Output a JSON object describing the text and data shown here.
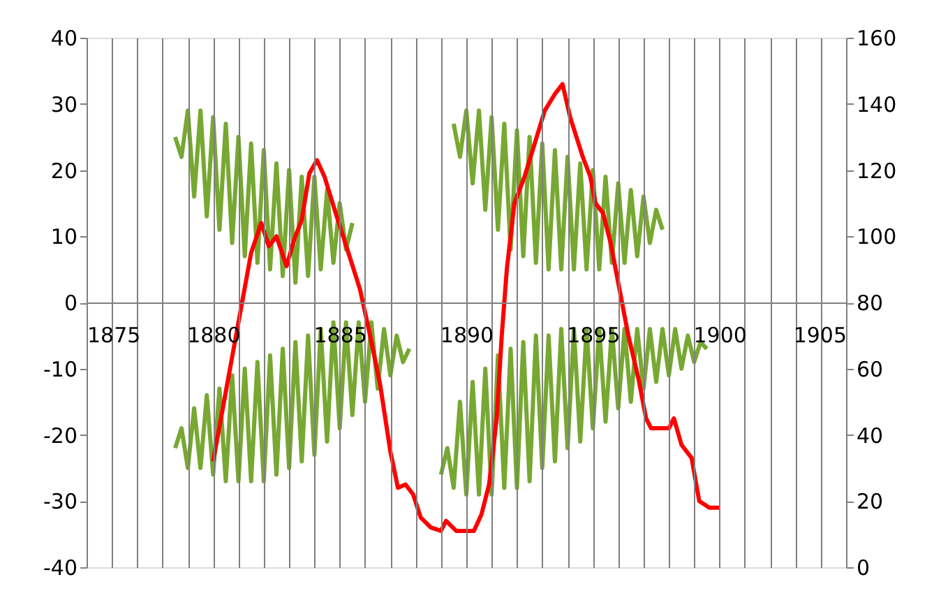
{
  "chart_data": {
    "type": "line",
    "xlim": [
      1875,
      1905
    ],
    "xticks": [
      1875,
      {
        "value": 1876,
        "label": null
      },
      {
        "value": 1877,
        "label": null
      },
      {
        "value": 1878,
        "label": null
      },
      {
        "value": 1879,
        "label": null
      },
      1880,
      {
        "value": 1881,
        "label": null
      },
      {
        "value": 1882,
        "label": null
      },
      {
        "value": 1883,
        "label": null
      },
      {
        "value": 1884,
        "label": null
      },
      1885,
      {
        "value": 1886,
        "label": null
      },
      {
        "value": 1887,
        "label": null
      },
      {
        "value": 1888,
        "label": null
      },
      {
        "value": 1889,
        "label": null
      },
      1890,
      {
        "value": 1891,
        "label": null
      },
      {
        "value": 1892,
        "label": null
      },
      {
        "value": 1893,
        "label": null
      },
      {
        "value": 1894,
        "label": null
      },
      1895,
      {
        "value": 1896,
        "label": null
      },
      {
        "value": 1897,
        "label": null
      },
      {
        "value": 1898,
        "label": null
      },
      {
        "value": 1899,
        "label": null
      },
      1900,
      {
        "value": 1901,
        "label": null
      },
      {
        "value": 1902,
        "label": null
      },
      {
        "value": 1903,
        "label": null
      },
      {
        "value": 1904,
        "label": null
      },
      1905
    ],
    "ylim": [
      -40,
      40
    ],
    "yticks": [
      -40,
      -30,
      -20,
      -10,
      0,
      10,
      20,
      30,
      40
    ],
    "y2lim": [
      0,
      160
    ],
    "y2ticks": [
      0,
      20,
      40,
      60,
      80,
      100,
      120,
      140,
      160
    ],
    "grid": "x",
    "marker": "none",
    "line_style": "solid",
    "series": [
      {
        "color": "#77a832",
        "x": [
          1878.5,
          1878.75,
          1879,
          1879.25,
          1879.5,
          1879.75,
          1880,
          1880.25,
          1880.5,
          1880.75,
          1881,
          1881.25,
          1881.5,
          1881.75,
          1882,
          1882.25,
          1882.5,
          1882.75,
          1883,
          1883.25,
          1883.5,
          1883.75,
          1884,
          1884.25,
          1884.5,
          1884.75,
          1885,
          1885.25,
          1885.5
        ],
        "values": [
          25,
          22,
          29,
          16,
          29,
          13,
          28,
          11,
          27,
          9,
          25,
          7,
          24,
          6,
          23,
          5,
          21,
          4,
          20,
          3,
          19,
          4,
          19,
          5,
          17,
          6,
          15,
          8,
          12
        ]
      },
      {
        "color": "#77a832",
        "x": [
          1878.5,
          1878.75,
          1879,
          1879.25,
          1879.5,
          1879.75,
          1880,
          1880.25,
          1880.5,
          1880.75,
          1881,
          1881.25,
          1881.5,
          1881.75,
          1882,
          1882.25,
          1882.5,
          1882.75,
          1883,
          1883.25,
          1883.5,
          1883.75,
          1884,
          1884.25,
          1884.5,
          1884.75,
          1885,
          1885.25,
          1885.5,
          1885.75,
          1886,
          1886.25,
          1886.5,
          1886.75,
          1887,
          1887.25,
          1887.5,
          1887.75
        ],
        "values": [
          -22,
          -19,
          -25,
          -16,
          -25,
          -14,
          -26,
          -13,
          -27,
          -11,
          -27,
          -10,
          -27,
          -9,
          -27,
          -8,
          -26,
          -7,
          -25,
          -6,
          -24,
          -5,
          -23,
          -4,
          -21,
          -3,
          -19,
          -3,
          -17,
          -3,
          -15,
          -3,
          -13,
          -4,
          -11,
          -5,
          -9,
          -7
        ]
      },
      {
        "color": "#77a832",
        "x": [
          1889.5,
          1889.75,
          1890,
          1890.25,
          1890.5,
          1890.75,
          1891,
          1891.25,
          1891.5,
          1891.75,
          1892,
          1892.25,
          1892.5,
          1892.75,
          1893,
          1893.25,
          1893.5,
          1893.75,
          1894,
          1894.25,
          1894.5,
          1894.75,
          1895,
          1895.25,
          1895.5,
          1895.75,
          1896,
          1896.25,
          1896.5,
          1896.75,
          1897,
          1897.25,
          1897.5,
          1897.75
        ],
        "values": [
          27,
          22,
          29,
          18,
          29,
          14,
          28,
          11,
          27,
          8,
          26,
          7,
          25,
          6,
          24,
          5,
          23,
          5,
          22,
          5,
          21,
          5,
          20,
          5,
          19,
          6,
          18,
          6,
          17,
          7,
          16,
          9,
          14,
          11
        ]
      },
      {
        "color": "#77a832",
        "x": [
          1889,
          1889.25,
          1889.5,
          1889.75,
          1890,
          1890.25,
          1890.5,
          1890.75,
          1891,
          1891.25,
          1891.5,
          1891.75,
          1892,
          1892.25,
          1892.5,
          1892.75,
          1893,
          1893.25,
          1893.5,
          1893.75,
          1894,
          1894.25,
          1894.5,
          1894.75,
          1895,
          1895.25,
          1895.5,
          1895.75,
          1896,
          1896.25,
          1896.5,
          1896.75,
          1897,
          1897.25,
          1897.5,
          1897.75,
          1898,
          1898.25,
          1898.5,
          1898.75,
          1899,
          1899.25,
          1899.5
        ],
        "values": [
          -26,
          -22,
          -28,
          -15,
          -29,
          -12,
          -29,
          -10,
          -29,
          -8,
          -28,
          -7,
          -28,
          -6,
          -27,
          -5,
          -25,
          -5,
          -24,
          -4,
          -22,
          -4,
          -21,
          -4,
          -19,
          -4,
          -18,
          -4,
          -16,
          -4,
          -15,
          -4,
          -13,
          -4,
          -12,
          -4,
          -11,
          -4,
          -10,
          -5,
          -9,
          -6,
          -7
        ]
      },
      {
        "color": "#ff0000",
        "axis": "y2",
        "x": [
          1880,
          1880.5,
          1881,
          1881.5,
          1881.9,
          1882.2,
          1882.5,
          1882.9,
          1883.2,
          1883.5,
          1883.8,
          1884.1,
          1884.4,
          1884.8,
          1885.3,
          1885.8,
          1886.2,
          1886.6,
          1887,
          1887.3,
          1887.6,
          1887.9,
          1888.2,
          1888.6,
          1889,
          1889.2,
          1889.6,
          1890,
          1890.3,
          1890.6,
          1890.9,
          1891.2,
          1891.4,
          1891.6,
          1891.9,
          1892.3,
          1892.7,
          1893.1,
          1893.5,
          1893.8,
          1894.1,
          1894.6,
          1894.9,
          1895.1,
          1895.4,
          1895.7,
          1896,
          1896.4,
          1896.8,
          1897.1,
          1897.3,
          1897.7,
          1898,
          1898.2,
          1898.5,
          1898.9,
          1899.2,
          1899.6,
          1900
        ],
        "values": [
          32,
          53,
          74,
          95,
          104,
          97,
          100,
          91,
          99,
          105,
          119,
          123,
          118,
          108,
          96,
          84,
          70,
          55,
          35,
          24,
          25,
          22,
          15,
          12,
          11,
          14,
          11,
          11,
          11,
          16,
          25,
          45,
          70,
          90,
          110,
          118,
          128,
          138,
          143,
          146,
          136,
          124,
          118,
          110,
          107,
          98,
          86,
          70,
          57,
          45,
          42,
          42,
          42,
          45,
          37,
          33,
          20,
          18,
          18
        ]
      }
    ]
  }
}
